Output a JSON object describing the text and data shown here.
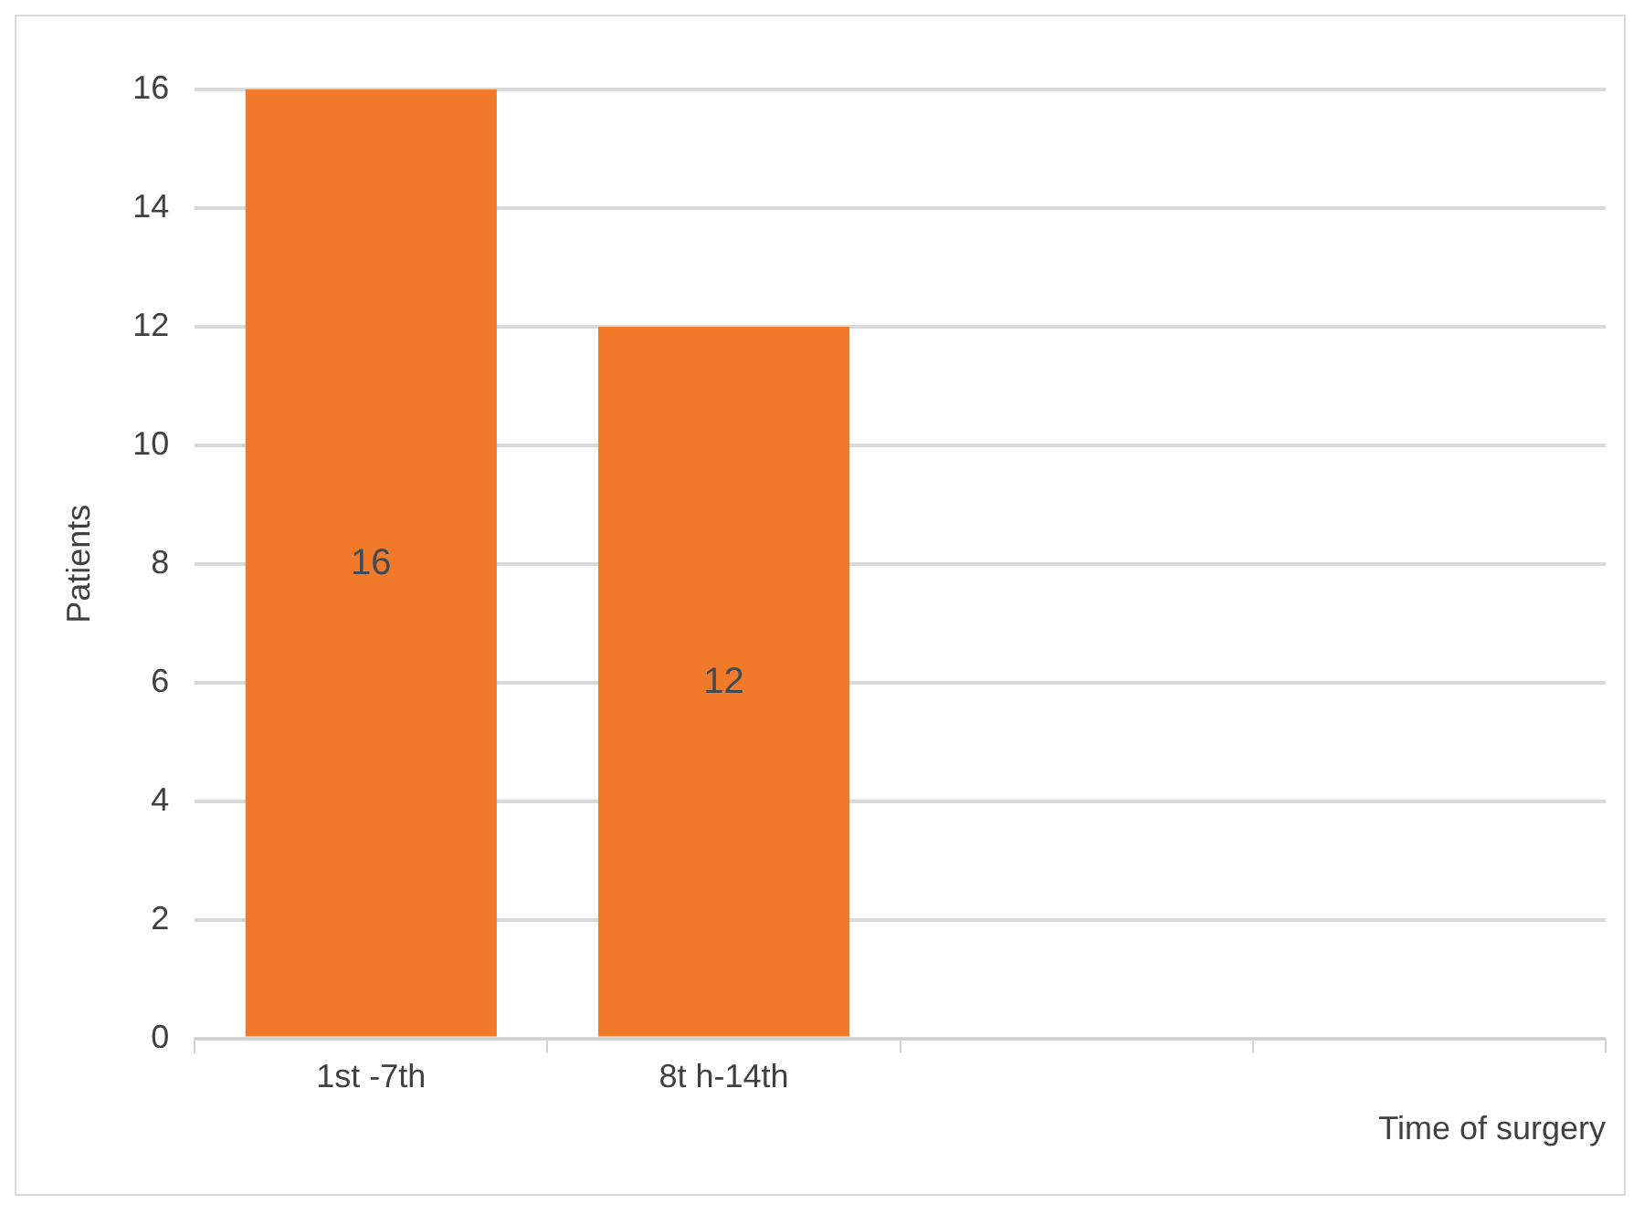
{
  "chart_data": {
    "type": "bar",
    "xlabel": "Time of surgery",
    "ylabel": "Patients",
    "categories": [
      "1st -7th",
      "8t h-14th",
      null,
      null
    ],
    "values": [
      16,
      12,
      null,
      null
    ],
    "color": "#f07a2a",
    "ylim": [
      0,
      16
    ],
    "yticks": [
      0,
      2,
      4,
      6,
      8,
      10,
      12,
      14,
      16
    ],
    "grid": "y",
    "data_labels": true
  }
}
